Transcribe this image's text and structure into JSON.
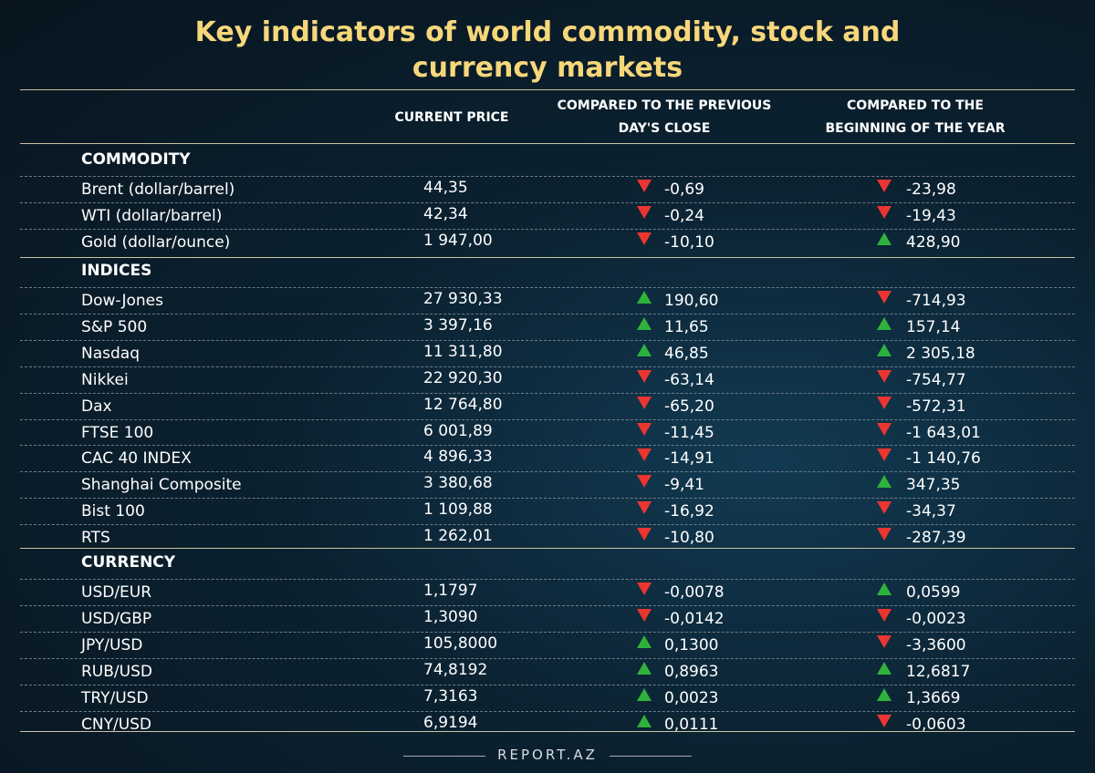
{
  "title": "Key indicators of world commodity, stock and currency markets",
  "headers": [
    "CURRENT PRICE",
    "COMPARED TO THE PREVIOUS DAY'S CLOSE",
    "COMPARED TO THE BEGINNING OF THE YEAR"
  ],
  "sections": [
    {
      "name": "COMMODITY",
      "rows": [
        [
          "Brent (dollar/barrel)",
          "44,35",
          "-0,69",
          "-23,98"
        ],
        [
          "WTI (dollar/barrel)",
          "42,34",
          "-0,24",
          "-19,43"
        ],
        [
          "Gold (dollar/ounce)",
          "1 947,00",
          "-10,10",
          "428,90"
        ]
      ]
    },
    {
      "name": "INDICES",
      "rows": [
        [
          "Dow-Jones",
          "27 930,33",
          "190,60",
          "-714,93"
        ],
        [
          "S&P 500",
          "3 397,16",
          "11,65",
          "157,14"
        ],
        [
          "Nasdaq",
          "11 311,80",
          "46,85",
          "2 305,18"
        ],
        [
          "Nikkei",
          "22 920,30",
          "-63,14",
          "-754,77"
        ],
        [
          "Dax",
          "12 764,80",
          "-65,20",
          "-572,31"
        ],
        [
          "FTSE 100",
          "6 001,89",
          "-11,45",
          "-1 643,01"
        ],
        [
          "CAC 40 INDEX",
          "4 896,33",
          "-14,91",
          "-1 140,76"
        ],
        [
          "Shanghai Composite",
          "3 380,68",
          "-9,41",
          "347,35"
        ],
        [
          "Bist 100",
          "1 109,88",
          "-16,92",
          "-34,37"
        ],
        [
          "RTS",
          "1 262,01",
          "-10,80",
          "-287,39"
        ]
      ]
    },
    {
      "name": "CURRENCY",
      "rows": [
        [
          "USD/EUR",
          "1,1797",
          "-0,0078",
          "0,0599"
        ],
        [
          "USD/GBP",
          "1,3090",
          "-0,0142",
          "-0,0023"
        ],
        [
          "JPY/USD",
          "105,8000",
          "0,1300",
          "-3,3600"
        ],
        [
          "RUB/USD",
          "74,8192",
          "0,8963",
          "12,6817"
        ],
        [
          "TRY/USD",
          "7,3163",
          "0,0023",
          "1,3669"
        ],
        [
          "CNY/USD",
          "6,9194",
          "0,0111",
          "-0,0603"
        ]
      ]
    }
  ],
  "footer": "REPORT.AZ"
}
